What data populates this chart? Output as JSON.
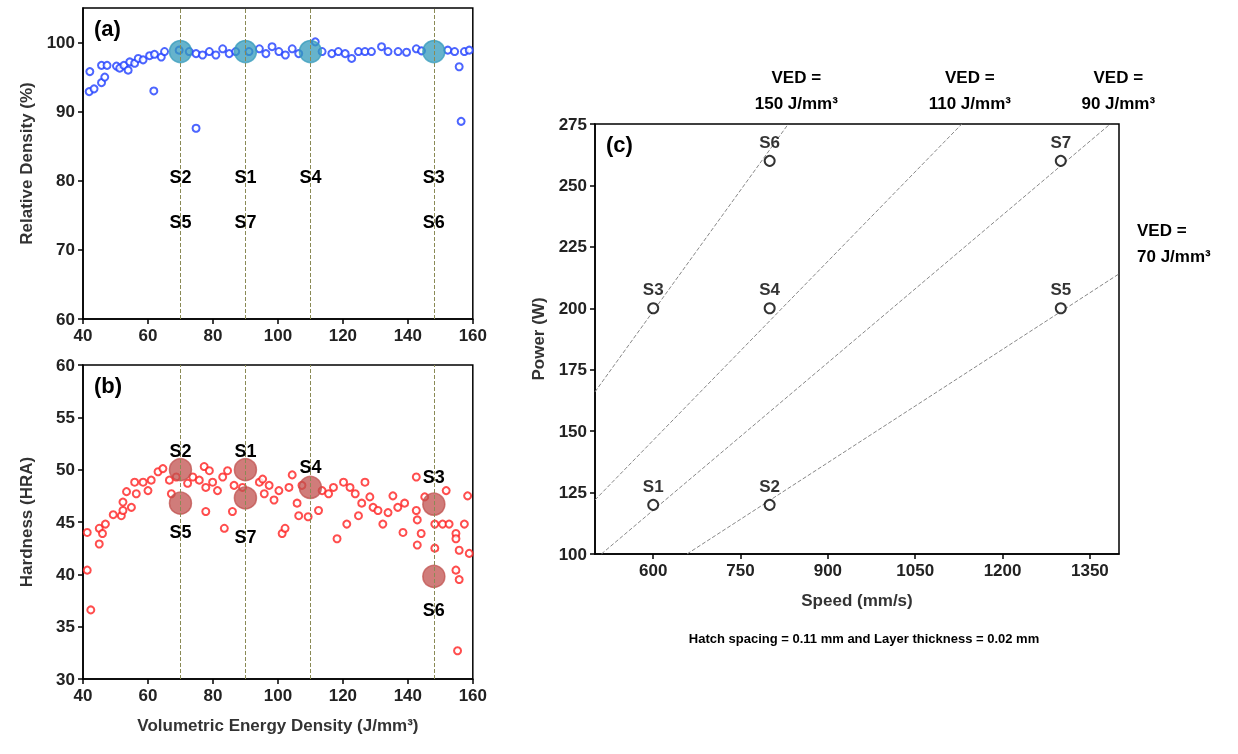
{
  "chart_data": [
    {
      "type": "scatter",
      "title": "(a)",
      "ylabel": "Relative Density (%)",
      "xlim": [
        40,
        160
      ],
      "xticks": [
        40,
        60,
        80,
        100,
        120,
        140,
        160
      ],
      "ylim": [
        60,
        105
      ],
      "yticks": [
        60,
        70,
        80,
        90,
        100
      ],
      "marker": "circle",
      "series": [
        {
          "color": "#1f3fff",
          "x": [
            42.1,
            41.9,
            43.4,
            45.7,
            46.7,
            45.7,
            47.4,
            50.3,
            51.3,
            52.6,
            53.9,
            54.4,
            55.9,
            57.0,
            58.5,
            60.5,
            61.8,
            62.0,
            64.1,
            65.1,
            66.6,
            69.6,
            72.7,
            74.8,
            74.8,
            76.8,
            78.9,
            80.9,
            83.0,
            85.0,
            87.0,
            91.1,
            94.3,
            96.3,
            98.2,
            100.3,
            102.3,
            104.4,
            106.4,
            111.5,
            113.6,
            116.6,
            118.6,
            120.7,
            122.7,
            124.8,
            126.8,
            128.8,
            131.9,
            133.9,
            137.0,
            139.6,
            142.6,
            144.2,
            152.3,
            154.4,
            155.8,
            156.4,
            157.4,
            158.9
          ],
          "values": [
            95.8,
            92.9,
            93.3,
            94.2,
            95.0,
            96.7,
            96.7,
            96.6,
            96.3,
            96.7,
            96.0,
            97.2,
            97.0,
            97.7,
            97.5,
            98.1,
            93.0,
            98.3,
            97.9,
            98.7,
            null,
            98.9,
            98.7,
            87.6,
            98.4,
            98.2,
            98.7,
            98.2,
            99.1,
            98.4,
            98.7,
            98.7,
            99.1,
            98.4,
            99.4,
            98.7,
            98.2,
            99.1,
            98.4,
            100.1,
            98.7,
            98.4,
            98.7,
            98.4,
            97.7,
            98.7,
            98.7,
            98.7,
            99.4,
            98.7,
            98.7,
            98.6,
            99.1,
            98.8,
            98.9,
            98.7,
            96.5,
            88.6,
            98.7,
            98.9
          ]
        },
        {
          "color": "#3399bb",
          "x": [
            70,
            90,
            110,
            148
          ],
          "values": [
            98.7,
            98.7,
            98.7,
            98.7
          ]
        }
      ],
      "ref_lines": [
        {
          "axis": "x",
          "value": 70,
          "color": "#8a8a55",
          "line_style": "dashed"
        },
        {
          "axis": "x",
          "value": 90,
          "color": "#8a8a55",
          "line_style": "dashed"
        },
        {
          "axis": "x",
          "value": 110,
          "color": "#8a8a55",
          "line_style": "dashed"
        },
        {
          "axis": "x",
          "value": 148,
          "color": "#8a8a55",
          "line_style": "dashed"
        }
      ],
      "annotations": [
        {
          "text": "S2",
          "x": 70,
          "y": 80.6
        },
        {
          "text": "S1",
          "x": 90,
          "y": 80.6
        },
        {
          "text": "S4",
          "x": 110,
          "y": 80.6
        },
        {
          "text": "S3",
          "x": 148,
          "y": 80.6
        },
        {
          "text": "S5",
          "x": 70,
          "y": 74
        },
        {
          "text": "S7",
          "x": 90,
          "y": 74
        },
        {
          "text": "S6",
          "x": 148,
          "y": 74
        }
      ]
    },
    {
      "type": "scatter",
      "title": "(b)",
      "xlabel": "Volumetric Energy Density (J/mm³)",
      "ylabel": "Hardness (HRA)",
      "xlim": [
        40,
        160
      ],
      "xticks": [
        40,
        60,
        80,
        100,
        120,
        140,
        160
      ],
      "ylim": [
        30,
        60
      ],
      "yticks": [
        30,
        35,
        40,
        45,
        50,
        55,
        60
      ],
      "marker": "circle",
      "series": [
        {
          "color": "#ff2020",
          "x": [
            41.3,
            41.3,
            42.4,
            45.0,
            45.0,
            46.0,
            46.9,
            49.3,
            51.8,
            52.3,
            52.3,
            53.4,
            54.9,
            55.9,
            56.4,
            58.5,
            60.0,
            61.0,
            63.1,
            64.6,
            66.6,
            67.2,
            68.7,
            72.2,
            73.8,
            75.8,
            77.3,
            77.8,
            78.9,
            77.8,
            79.9,
            81.4,
            83.0,
            83.5,
            84.5,
            86.0,
            86.5,
            89.1,
            94.3,
            95.3,
            95.8,
            97.3,
            98.8,
            100.3,
            101.3,
            102.2,
            103.4,
            104.4,
            105.9,
            106.4,
            107.4,
            109.3,
            112.5,
            113.6,
            115.6,
            117.1,
            118.2,
            120.2,
            121.2,
            122.2,
            123.8,
            124.8,
            125.8,
            126.8,
            128.3,
            129.3,
            130.8,
            132.3,
            133.9,
            135.4,
            136.9,
            138.5,
            139.0,
            142.6,
            142.6,
            142.9,
            142.9,
            144.1,
            145.2,
            148.3,
            148.3,
            151.8,
            150.7,
            152.7,
            154.8,
            154.8,
            154.8,
            155.8,
            155.8,
            155.3,
            157.4,
            158.4,
            158.9
          ],
          "values": [
            44.0,
            40.4,
            36.6,
            42.9,
            44.4,
            43.9,
            44.8,
            45.7,
            45.6,
            46.1,
            46.9,
            47.9,
            46.4,
            48.8,
            47.7,
            48.8,
            48.0,
            49.0,
            49.8,
            50.1,
            49.0,
            47.7,
            49.3,
            48.7,
            49.3,
            49.0,
            50.3,
            48.3,
            49.9,
            46.0,
            48.8,
            48.0,
            49.3,
            44.4,
            49.9,
            46.0,
            48.5,
            48.3,
            48.8,
            49.1,
            47.7,
            48.5,
            47.1,
            48.0,
            43.9,
            44.4,
            48.3,
            49.5,
            46.8,
            45.6,
            48.5,
            45.5,
            46.1,
            48.0,
            47.7,
            48.3,
            43.4,
            48.8,
            44.8,
            48.3,
            47.7,
            45.6,
            46.8,
            48.8,
            47.4,
            46.4,
            46.1,
            44.8,
            45.9,
            47.5,
            46.4,
            44.0,
            46.8,
            49.3,
            46.1,
            45.2,
            42.8,
            43.9,
            47.4,
            42.5,
            44.8,
            48.0,
            44.8,
            44.8,
            43.9,
            43.4,
            40.4,
            42.3,
            39.5,
            32.7,
            44.8,
            47.5,
            42.0
          ]
        },
        {
          "color": "#c0504d",
          "x": [
            70,
            70,
            90,
            90,
            110,
            148,
            148
          ],
          "values": [
            50.0,
            46.8,
            50.0,
            47.3,
            48.3,
            46.7,
            39.8
          ]
        }
      ],
      "ref_lines": [
        {
          "axis": "x",
          "value": 70,
          "color": "#8a8a55",
          "line_style": "dashed"
        },
        {
          "axis": "x",
          "value": 90,
          "color": "#8a8a55",
          "line_style": "dashed"
        },
        {
          "axis": "x",
          "value": 110,
          "color": "#8a8a55",
          "line_style": "dashed"
        },
        {
          "axis": "x",
          "value": 148,
          "color": "#8a8a55",
          "line_style": "dashed"
        }
      ],
      "annotations": [
        {
          "text": "S2",
          "x": 70,
          "y": 51.8
        },
        {
          "text": "S5",
          "x": 70,
          "y": 44.0
        },
        {
          "text": "S1",
          "x": 90,
          "y": 51.8
        },
        {
          "text": "S7",
          "x": 90,
          "y": 43.6
        },
        {
          "text": "S4",
          "x": 110,
          "y": 50.3
        },
        {
          "text": "S3",
          "x": 148,
          "y": 49.3
        },
        {
          "text": "S6",
          "x": 148,
          "y": 36.6
        }
      ]
    },
    {
      "type": "scatter",
      "title": "(c)",
      "xlabel": "Speed (mm/s)",
      "ylabel": "Power (W)",
      "xlim": [
        500,
        1400
      ],
      "xticks": [
        600,
        750,
        900,
        1050,
        1200,
        1350
      ],
      "ylim": [
        100,
        275
      ],
      "yticks": [
        100,
        125,
        150,
        175,
        200,
        225,
        250,
        275
      ],
      "marker": "circle",
      "series": [
        {
          "type": "line",
          "name": "VED = 150 J/mm³",
          "color": "#888888",
          "line_style": "dashed",
          "marker": "none",
          "x": [
            500,
            832
          ],
          "values": [
            166,
            275
          ]
        },
        {
          "type": "line",
          "name": "VED = 110 J/mm³",
          "color": "#888888",
          "line_style": "dashed",
          "marker": "none",
          "x": [
            500,
            1130
          ],
          "values": [
            122,
            275
          ]
        },
        {
          "type": "line",
          "name": "VED = 90 J/mm³",
          "color": "#888888",
          "line_style": "dashed",
          "marker": "none",
          "x": [
            511,
            1385
          ],
          "values": [
            100,
            275
          ]
        },
        {
          "type": "line",
          "name": "VED = 70 J/mm³",
          "color": "#888888",
          "line_style": "dashed",
          "marker": "none",
          "x": [
            658,
            1400
          ],
          "values": [
            100,
            214
          ]
        },
        {
          "color": "#000000",
          "x": [
            600,
            800,
            600,
            800,
            1300,
            800,
            1300
          ],
          "values": [
            120,
            120,
            200,
            200,
            200,
            260,
            260
          ],
          "value_labels": [
            "S1",
            "S2",
            "S3",
            "S4",
            "S5",
            "S6",
            "S7"
          ]
        }
      ],
      "annotations": [
        "Hatch spacing = 0.11 mm and Layer thickness = 0.02 mm"
      ]
    }
  ]
}
